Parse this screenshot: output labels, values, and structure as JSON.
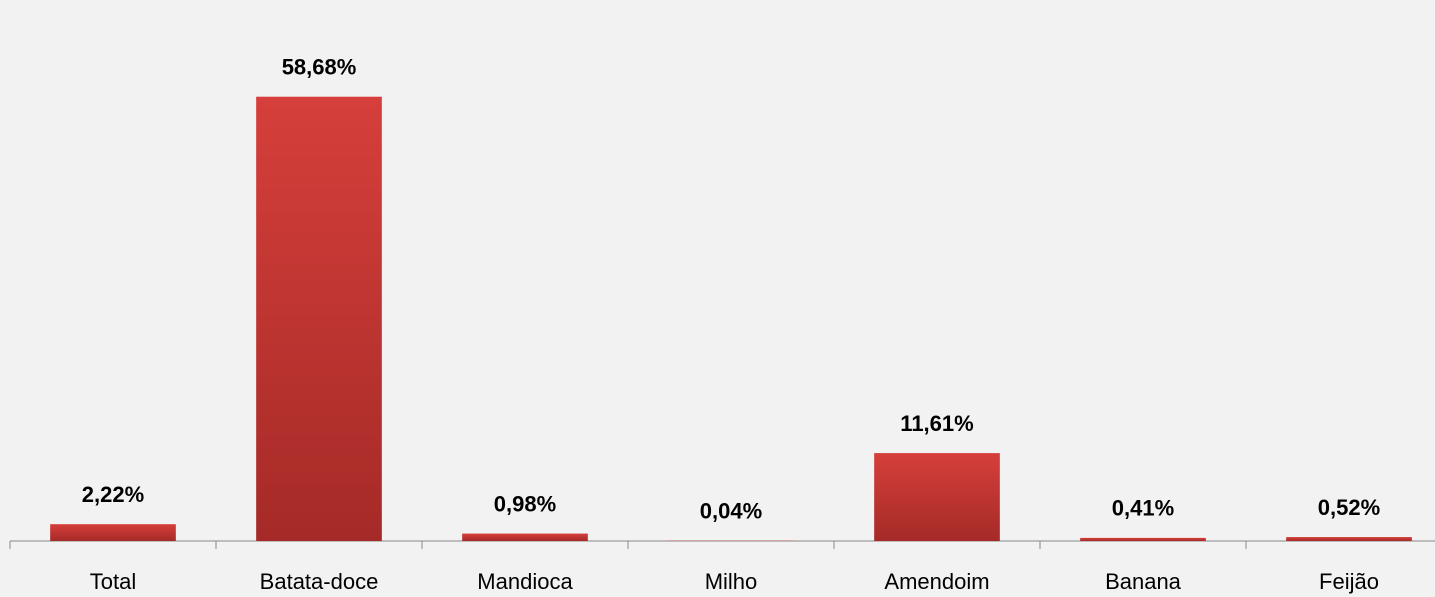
{
  "chart_data": {
    "type": "bar",
    "categories": [
      "Total",
      "Batata-doce",
      "Mandioca",
      "Milho",
      "Amendoim",
      "Banana",
      "Feijão"
    ],
    "values": [
      2.22,
      58.68,
      0.98,
      0.04,
      11.61,
      0.41,
      0.52
    ],
    "value_labels": [
      "2,22%",
      "58,68%",
      "0,98%",
      "0,04%",
      "11,61%",
      "0,41%",
      "0,52%"
    ],
    "color": "#c93733",
    "ylim": [
      0,
      70
    ]
  }
}
